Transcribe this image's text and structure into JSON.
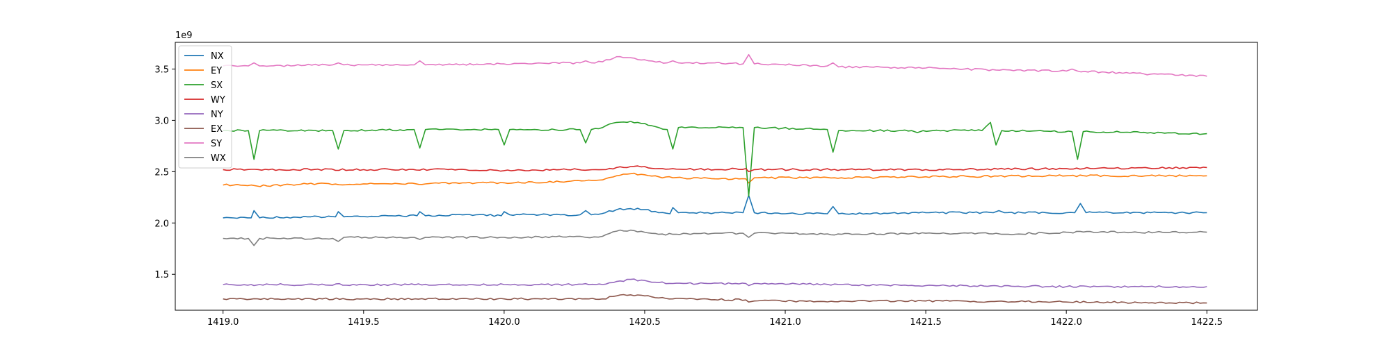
{
  "chart_data": {
    "type": "line",
    "title": "",
    "xlabel": "",
    "ylabel": "",
    "y_scale_label": "1e9",
    "y_multiplier": 1000000000,
    "xlim": [
      1418.83,
      1422.68
    ],
    "ylim": [
      1.15,
      3.76
    ],
    "x_ticks": [
      1419.0,
      1419.5,
      1420.0,
      1420.5,
      1421.0,
      1421.5,
      1422.0,
      1422.5
    ],
    "x_tick_labels": [
      "1419.0",
      "1419.5",
      "1420.0",
      "1420.5",
      "1421.0",
      "1421.5",
      "1422.0",
      "1422.5"
    ],
    "y_ticks": [
      1.5,
      2.0,
      2.5,
      3.0,
      3.5
    ],
    "y_tick_labels": [
      "1.5",
      "2.0",
      "2.5",
      "3.0",
      "3.5"
    ],
    "grid": false,
    "legend_position": "upper-left",
    "x_range": [
      1419.0,
      1422.5
    ],
    "series": [
      {
        "name": "NX",
        "color": "#1f77b4",
        "points": [
          [
            1419.0,
            2.05
          ],
          [
            1419.1,
            2.05
          ],
          [
            1419.11,
            2.12
          ],
          [
            1419.13,
            2.05
          ],
          [
            1419.3,
            2.06
          ],
          [
            1419.4,
            2.06
          ],
          [
            1419.41,
            2.11
          ],
          [
            1419.43,
            2.06
          ],
          [
            1419.6,
            2.07
          ],
          [
            1419.69,
            2.07
          ],
          [
            1419.7,
            2.11
          ],
          [
            1419.72,
            2.07
          ],
          [
            1419.9,
            2.08
          ],
          [
            1419.99,
            2.07
          ],
          [
            1420.0,
            2.11
          ],
          [
            1420.02,
            2.08
          ],
          [
            1420.2,
            2.08
          ],
          [
            1420.27,
            2.08
          ],
          [
            1420.29,
            2.12
          ],
          [
            1420.31,
            2.08
          ],
          [
            1420.36,
            2.1
          ],
          [
            1420.4,
            2.13
          ],
          [
            1420.45,
            2.14
          ],
          [
            1420.5,
            2.13
          ],
          [
            1420.55,
            2.1
          ],
          [
            1420.59,
            2.09
          ],
          [
            1420.6,
            2.15
          ],
          [
            1420.62,
            2.1
          ],
          [
            1420.75,
            2.1
          ],
          [
            1420.85,
            2.1
          ],
          [
            1420.87,
            2.27
          ],
          [
            1420.89,
            2.1
          ],
          [
            1421.0,
            2.09
          ],
          [
            1421.15,
            2.09
          ],
          [
            1421.17,
            2.16
          ],
          [
            1421.19,
            2.09
          ],
          [
            1421.5,
            2.1
          ],
          [
            1421.74,
            2.1
          ],
          [
            1421.76,
            2.12
          ],
          [
            1421.78,
            2.1
          ],
          [
            1422.0,
            2.1
          ],
          [
            1422.03,
            2.1
          ],
          [
            1422.05,
            2.19
          ],
          [
            1422.07,
            2.1
          ],
          [
            1422.3,
            2.1
          ],
          [
            1422.5,
            2.1
          ]
        ]
      },
      {
        "name": "EY",
        "color": "#ff7f0e",
        "points": [
          [
            1419.0,
            2.37
          ],
          [
            1419.1,
            2.37
          ],
          [
            1419.12,
            2.36
          ],
          [
            1419.3,
            2.38
          ],
          [
            1419.6,
            2.38
          ],
          [
            1419.9,
            2.39
          ],
          [
            1420.2,
            2.4
          ],
          [
            1420.35,
            2.42
          ],
          [
            1420.4,
            2.46
          ],
          [
            1420.45,
            2.48
          ],
          [
            1420.5,
            2.47
          ],
          [
            1420.55,
            2.45
          ],
          [
            1420.6,
            2.44
          ],
          [
            1420.75,
            2.43
          ],
          [
            1420.86,
            2.43
          ],
          [
            1420.87,
            2.39
          ],
          [
            1420.89,
            2.44
          ],
          [
            1421.2,
            2.44
          ],
          [
            1421.5,
            2.45
          ],
          [
            1422.0,
            2.46
          ],
          [
            1422.5,
            2.46
          ]
        ]
      },
      {
        "name": "SX",
        "color": "#2ca02c",
        "points": [
          [
            1419.0,
            2.9
          ],
          [
            1419.09,
            2.9
          ],
          [
            1419.11,
            2.62
          ],
          [
            1419.13,
            2.9
          ],
          [
            1419.39,
            2.9
          ],
          [
            1419.41,
            2.72
          ],
          [
            1419.43,
            2.9
          ],
          [
            1419.68,
            2.91
          ],
          [
            1419.7,
            2.73
          ],
          [
            1419.72,
            2.91
          ],
          [
            1419.98,
            2.91
          ],
          [
            1420.0,
            2.76
          ],
          [
            1420.02,
            2.91
          ],
          [
            1420.27,
            2.91
          ],
          [
            1420.29,
            2.78
          ],
          [
            1420.31,
            2.91
          ],
          [
            1420.35,
            2.93
          ],
          [
            1420.4,
            2.98
          ],
          [
            1420.45,
            2.99
          ],
          [
            1420.5,
            2.97
          ],
          [
            1420.55,
            2.93
          ],
          [
            1420.58,
            2.91
          ],
          [
            1420.6,
            2.72
          ],
          [
            1420.62,
            2.93
          ],
          [
            1420.8,
            2.93
          ],
          [
            1420.85,
            2.93
          ],
          [
            1420.87,
            2.26
          ],
          [
            1420.89,
            2.93
          ],
          [
            1421.15,
            2.91
          ],
          [
            1421.17,
            2.69
          ],
          [
            1421.19,
            2.9
          ],
          [
            1421.45,
            2.9
          ],
          [
            1421.47,
            2.88
          ],
          [
            1421.49,
            2.9
          ],
          [
            1421.7,
            2.9
          ],
          [
            1421.73,
            2.98
          ],
          [
            1421.75,
            2.76
          ],
          [
            1421.77,
            2.9
          ],
          [
            1422.02,
            2.89
          ],
          [
            1422.04,
            2.62
          ],
          [
            1422.06,
            2.89
          ],
          [
            1422.3,
            2.88
          ],
          [
            1422.5,
            2.87
          ]
        ]
      },
      {
        "name": "WY",
        "color": "#d62728",
        "points": [
          [
            1419.0,
            2.52
          ],
          [
            1419.2,
            2.52
          ],
          [
            1419.5,
            2.52
          ],
          [
            1419.8,
            2.52
          ],
          [
            1420.0,
            2.51
          ],
          [
            1420.2,
            2.52
          ],
          [
            1420.35,
            2.52
          ],
          [
            1420.4,
            2.54
          ],
          [
            1420.45,
            2.55
          ],
          [
            1420.5,
            2.55
          ],
          [
            1420.55,
            2.53
          ],
          [
            1420.75,
            2.52
          ],
          [
            1420.86,
            2.53
          ],
          [
            1420.87,
            2.5
          ],
          [
            1420.89,
            2.52
          ],
          [
            1421.2,
            2.52
          ],
          [
            1421.5,
            2.52
          ],
          [
            1422.0,
            2.53
          ],
          [
            1422.5,
            2.54
          ]
        ]
      },
      {
        "name": "NY",
        "color": "#9467bd",
        "points": [
          [
            1419.0,
            1.4
          ],
          [
            1419.1,
            1.4
          ],
          [
            1419.11,
            1.39
          ],
          [
            1419.13,
            1.4
          ],
          [
            1419.5,
            1.4
          ],
          [
            1420.0,
            1.4
          ],
          [
            1420.35,
            1.4
          ],
          [
            1420.4,
            1.43
          ],
          [
            1420.45,
            1.45
          ],
          [
            1420.5,
            1.44
          ],
          [
            1420.55,
            1.42
          ],
          [
            1420.6,
            1.41
          ],
          [
            1420.86,
            1.41
          ],
          [
            1420.87,
            1.39
          ],
          [
            1420.89,
            1.41
          ],
          [
            1421.2,
            1.4
          ],
          [
            1421.5,
            1.39
          ],
          [
            1422.0,
            1.38
          ],
          [
            1422.5,
            1.38
          ]
        ]
      },
      {
        "name": "EX",
        "color": "#8c564b",
        "points": [
          [
            1419.0,
            1.26
          ],
          [
            1419.5,
            1.26
          ],
          [
            1420.0,
            1.26
          ],
          [
            1420.35,
            1.26
          ],
          [
            1420.4,
            1.29
          ],
          [
            1420.45,
            1.3
          ],
          [
            1420.5,
            1.29
          ],
          [
            1420.55,
            1.27
          ],
          [
            1420.6,
            1.26
          ],
          [
            1420.86,
            1.25
          ],
          [
            1420.87,
            1.23
          ],
          [
            1420.89,
            1.24
          ],
          [
            1421.2,
            1.24
          ],
          [
            1421.5,
            1.24
          ],
          [
            1422.0,
            1.23
          ],
          [
            1422.5,
            1.22
          ]
        ]
      },
      {
        "name": "SY",
        "color": "#e377c2",
        "points": [
          [
            1419.0,
            3.53
          ],
          [
            1419.09,
            3.53
          ],
          [
            1419.11,
            3.56
          ],
          [
            1419.13,
            3.53
          ],
          [
            1419.39,
            3.54
          ],
          [
            1419.41,
            3.56
          ],
          [
            1419.43,
            3.54
          ],
          [
            1419.68,
            3.54
          ],
          [
            1419.7,
            3.58
          ],
          [
            1419.72,
            3.54
          ],
          [
            1420.0,
            3.55
          ],
          [
            1420.27,
            3.56
          ],
          [
            1420.29,
            3.58
          ],
          [
            1420.31,
            3.56
          ],
          [
            1420.35,
            3.57
          ],
          [
            1420.4,
            3.62
          ],
          [
            1420.45,
            3.61
          ],
          [
            1420.5,
            3.59
          ],
          [
            1420.58,
            3.56
          ],
          [
            1420.6,
            3.58
          ],
          [
            1420.62,
            3.56
          ],
          [
            1420.75,
            3.56
          ],
          [
            1420.85,
            3.55
          ],
          [
            1420.87,
            3.64
          ],
          [
            1420.89,
            3.55
          ],
          [
            1421.15,
            3.53
          ],
          [
            1421.17,
            3.56
          ],
          [
            1421.19,
            3.52
          ],
          [
            1421.5,
            3.51
          ],
          [
            1421.75,
            3.49
          ],
          [
            1422.0,
            3.48
          ],
          [
            1422.02,
            3.5
          ],
          [
            1422.04,
            3.48
          ],
          [
            1422.3,
            3.45
          ],
          [
            1422.5,
            3.43
          ]
        ]
      },
      {
        "name": "WX",
        "color": "#7f7f7f",
        "points": [
          [
            1419.0,
            1.85
          ],
          [
            1419.09,
            1.85
          ],
          [
            1419.11,
            1.78
          ],
          [
            1419.13,
            1.85
          ],
          [
            1419.39,
            1.85
          ],
          [
            1419.41,
            1.82
          ],
          [
            1419.43,
            1.86
          ],
          [
            1419.68,
            1.86
          ],
          [
            1419.7,
            1.84
          ],
          [
            1419.72,
            1.86
          ],
          [
            1420.0,
            1.86
          ],
          [
            1420.27,
            1.87
          ],
          [
            1420.29,
            1.86
          ],
          [
            1420.35,
            1.87
          ],
          [
            1420.4,
            1.92
          ],
          [
            1420.45,
            1.93
          ],
          [
            1420.5,
            1.91
          ],
          [
            1420.55,
            1.89
          ],
          [
            1420.6,
            1.89
          ],
          [
            1420.75,
            1.9
          ],
          [
            1420.85,
            1.9
          ],
          [
            1420.87,
            1.86
          ],
          [
            1420.89,
            1.9
          ],
          [
            1421.2,
            1.89
          ],
          [
            1421.5,
            1.9
          ],
          [
            1421.75,
            1.9
          ],
          [
            1421.77,
            1.89
          ],
          [
            1422.0,
            1.91
          ],
          [
            1422.5,
            1.91
          ]
        ]
      }
    ]
  }
}
